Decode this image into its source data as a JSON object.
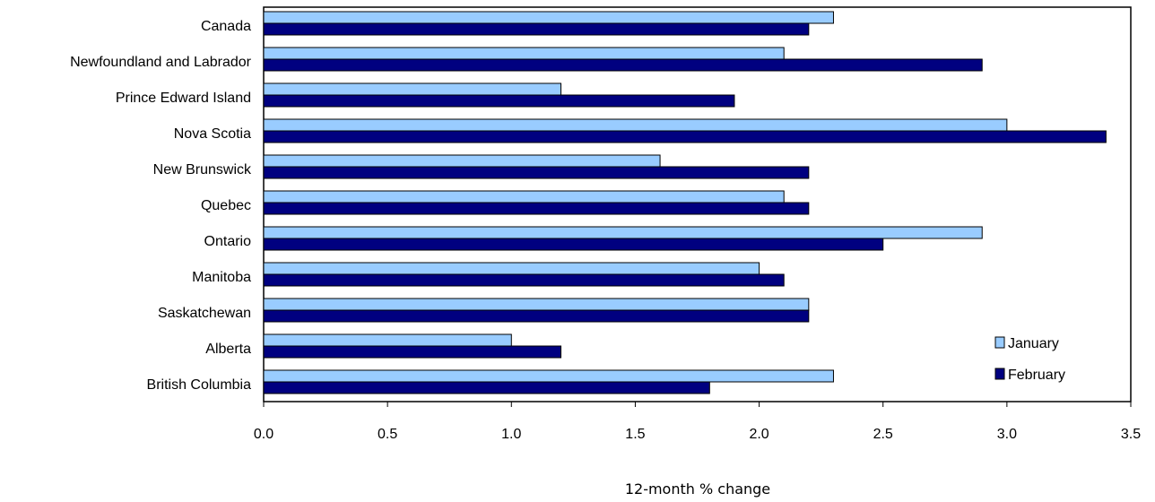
{
  "chart_data": {
    "type": "bar",
    "orientation": "horizontal",
    "categories": [
      "Canada",
      "Newfoundland and Labrador",
      "Prince Edward Island",
      "Nova Scotia",
      "New Brunswick",
      "Quebec",
      "Ontario",
      "Manitoba",
      "Saskatchewan",
      "Alberta",
      "British Columbia"
    ],
    "series": [
      {
        "name": "January",
        "color": "#99ccff",
        "values": [
          2.3,
          2.1,
          1.2,
          3.0,
          1.6,
          2.1,
          2.9,
          2.0,
          2.2,
          1.0,
          2.3
        ]
      },
      {
        "name": "February",
        "color": "#000080",
        "values": [
          2.2,
          2.9,
          1.9,
          3.4,
          2.2,
          2.2,
          2.5,
          2.1,
          2.2,
          1.2,
          1.8
        ]
      }
    ],
    "xlabel": "12-month % change",
    "ylabel": "",
    "xlim": [
      0,
      3.5
    ],
    "xticks": [
      "0.0",
      "0.5",
      "1.0",
      "1.5",
      "2.0",
      "2.5",
      "3.0",
      "3.5"
    ],
    "grid": false,
    "legend_position": "bottom-right"
  }
}
